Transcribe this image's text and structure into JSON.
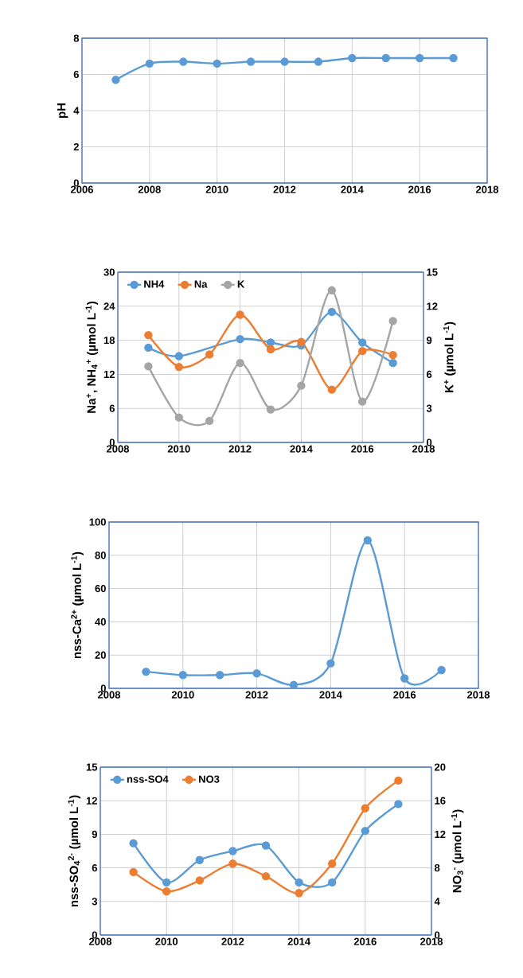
{
  "chart_data": [
    {
      "type": "line",
      "x": [
        2007,
        2008,
        2009,
        2010,
        2011,
        2012,
        2013,
        2014,
        2015,
        2016,
        2017
      ],
      "ylabel": "pH",
      "xlim": [
        2006,
        2018
      ],
      "xticks": [
        2006,
        2008,
        2010,
        2012,
        2014,
        2016,
        2018
      ],
      "ylim": [
        0,
        8
      ],
      "yticks": [
        0,
        2,
        4,
        6,
        8
      ],
      "grid": true,
      "marker": "circle",
      "series": [
        {
          "color": "#5b9bd5",
          "values": [
            5.7,
            6.6,
            6.7,
            6.6,
            6.7,
            6.7,
            6.7,
            6.9,
            6.9,
            6.9,
            6.9
          ]
        }
      ]
    },
    {
      "type": "line",
      "x": [
        2009,
        2010,
        2011,
        2012,
        2013,
        2014,
        2015,
        2016,
        2017
      ],
      "ylabel": "Na$^{+}$, NH$_{4}$$^{+}$ (µmol L$^{-1}$)",
      "y2label": "K$^{+}$ (µmol L$^{-1}$)",
      "xlim": [
        2008,
        2018
      ],
      "xticks": [
        2008,
        2010,
        2012,
        2014,
        2016,
        2018
      ],
      "ylim": [
        0,
        30
      ],
      "yticks": [
        0,
        6,
        12,
        18,
        24,
        30
      ],
      "y2lim": [
        0,
        15
      ],
      "y2ticks": [
        0,
        3,
        6,
        9,
        12,
        15
      ],
      "grid": true,
      "marker": "circle",
      "legend": "top left",
      "series": [
        {
          "name": "NH4",
          "color": "#5b9bd5",
          "values": [
            16.7,
            15.2,
            null,
            18.2,
            17.6,
            17.1,
            23,
            17.6,
            14
          ]
        },
        {
          "name": "Na",
          "color": "#ed7d31",
          "values": [
            18.9,
            13.3,
            15.5,
            22.5,
            16.4,
            17.7,
            9.3,
            16.1,
            15.4
          ]
        },
        {
          "name": "K",
          "color": "#a5a5a5",
          "axis": "y2",
          "values": [
            6.7,
            2.2,
            1.9,
            7.0,
            2.9,
            5.0,
            13.4,
            3.6,
            10.7
          ]
        }
      ]
    },
    {
      "type": "line",
      "x": [
        2009,
        2010,
        2011,
        2012,
        2013,
        2014,
        2015,
        2016,
        2017
      ],
      "ylabel": "nss-Ca$^{2+}$ (µmol L$^{-1}$)",
      "xlim": [
        2008,
        2018
      ],
      "xticks": [
        2008,
        2010,
        2012,
        2014,
        2016,
        2018
      ],
      "ylim": [
        0,
        100
      ],
      "yticks": [
        0,
        20,
        40,
        60,
        80,
        100
      ],
      "grid": true,
      "marker": "circle",
      "series": [
        {
          "color": "#5b9bd5",
          "values": [
            10,
            8,
            8,
            9,
            2,
            15,
            89,
            6,
            11
          ]
        }
      ]
    },
    {
      "type": "line",
      "x": [
        2009,
        2010,
        2011,
        2012,
        2013,
        2014,
        2015,
        2016,
        2017
      ],
      "ylabel": "nss-SO$_{4}$$^{2-}$ (µmol L$^{-1}$)",
      "y2label": "NO$_{3}$$^{-}$ (µmol L$^{-1}$)",
      "xlim": [
        2008,
        2018
      ],
      "xticks": [
        2008,
        2010,
        2012,
        2014,
        2016,
        2018
      ],
      "ylim": [
        0,
        15
      ],
      "yticks": [
        0,
        3,
        6,
        9,
        12,
        15
      ],
      "y2lim": [
        0,
        20
      ],
      "y2ticks": [
        0,
        4,
        8,
        12,
        16,
        20
      ],
      "grid": true,
      "marker": "circle",
      "legend": "top left",
      "series": [
        {
          "name": "nss-SO4",
          "color": "#5b9bd5",
          "values": [
            8.2,
            4.7,
            6.7,
            7.5,
            8.0,
            4.7,
            4.7,
            9.3,
            11.7
          ]
        },
        {
          "name": "NO3",
          "color": "#ed7d31",
          "axis": "y2",
          "values": [
            7.5,
            5.2,
            6.5,
            8.5,
            7.0,
            5.0,
            8.5,
            15.1,
            18.4
          ]
        }
      ]
    }
  ]
}
